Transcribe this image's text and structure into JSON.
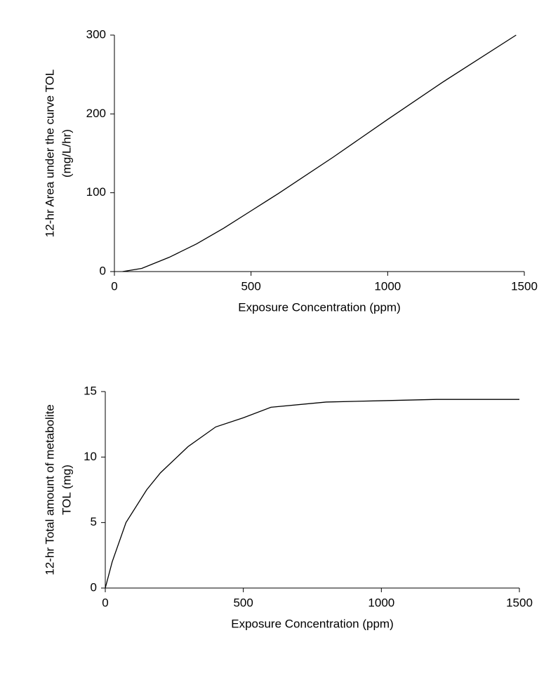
{
  "chart_data": [
    {
      "type": "line",
      "ylabel": [
        "12-hr Area under the curve TOL",
        "(mg/L/hr)"
      ],
      "xlabel": "Exposure Concentration (ppm)",
      "x": [
        30,
        100,
        200,
        300,
        400,
        500,
        600,
        800,
        1000,
        1200,
        1470
      ],
      "series": [
        {
          "name": null,
          "color": "#000000",
          "values": [
            0,
            4,
            18,
            35,
            55,
            77,
            99,
            145,
            193,
            240,
            300
          ]
        }
      ],
      "xlim": [
        0,
        1500
      ],
      "xticks": [
        0,
        500,
        1000,
        1500
      ],
      "ylim": [
        0,
        300
      ],
      "yticks": [
        0,
        100,
        200,
        300
      ]
    },
    {
      "type": "line",
      "ylabel": [
        "12-hr Total amount of metabolite",
        "TOL (mg)"
      ],
      "xlabel": "Exposure Concentration (ppm)",
      "x": [
        0,
        25,
        75,
        150,
        200,
        300,
        400,
        500,
        600,
        800,
        1000,
        1200,
        1500
      ],
      "series": [
        {
          "name": null,
          "color": "#000000",
          "values": [
            0,
            2,
            5,
            7.5,
            8.8,
            10.8,
            12.3,
            13,
            13.8,
            14.2,
            14.3,
            14.4,
            14.4
          ]
        }
      ],
      "xlim": [
        0,
        1500
      ],
      "xticks": [
        0,
        500,
        1000,
        1500
      ],
      "ylim": [
        0,
        15
      ],
      "yticks": [
        0,
        5,
        10,
        15
      ]
    }
  ]
}
